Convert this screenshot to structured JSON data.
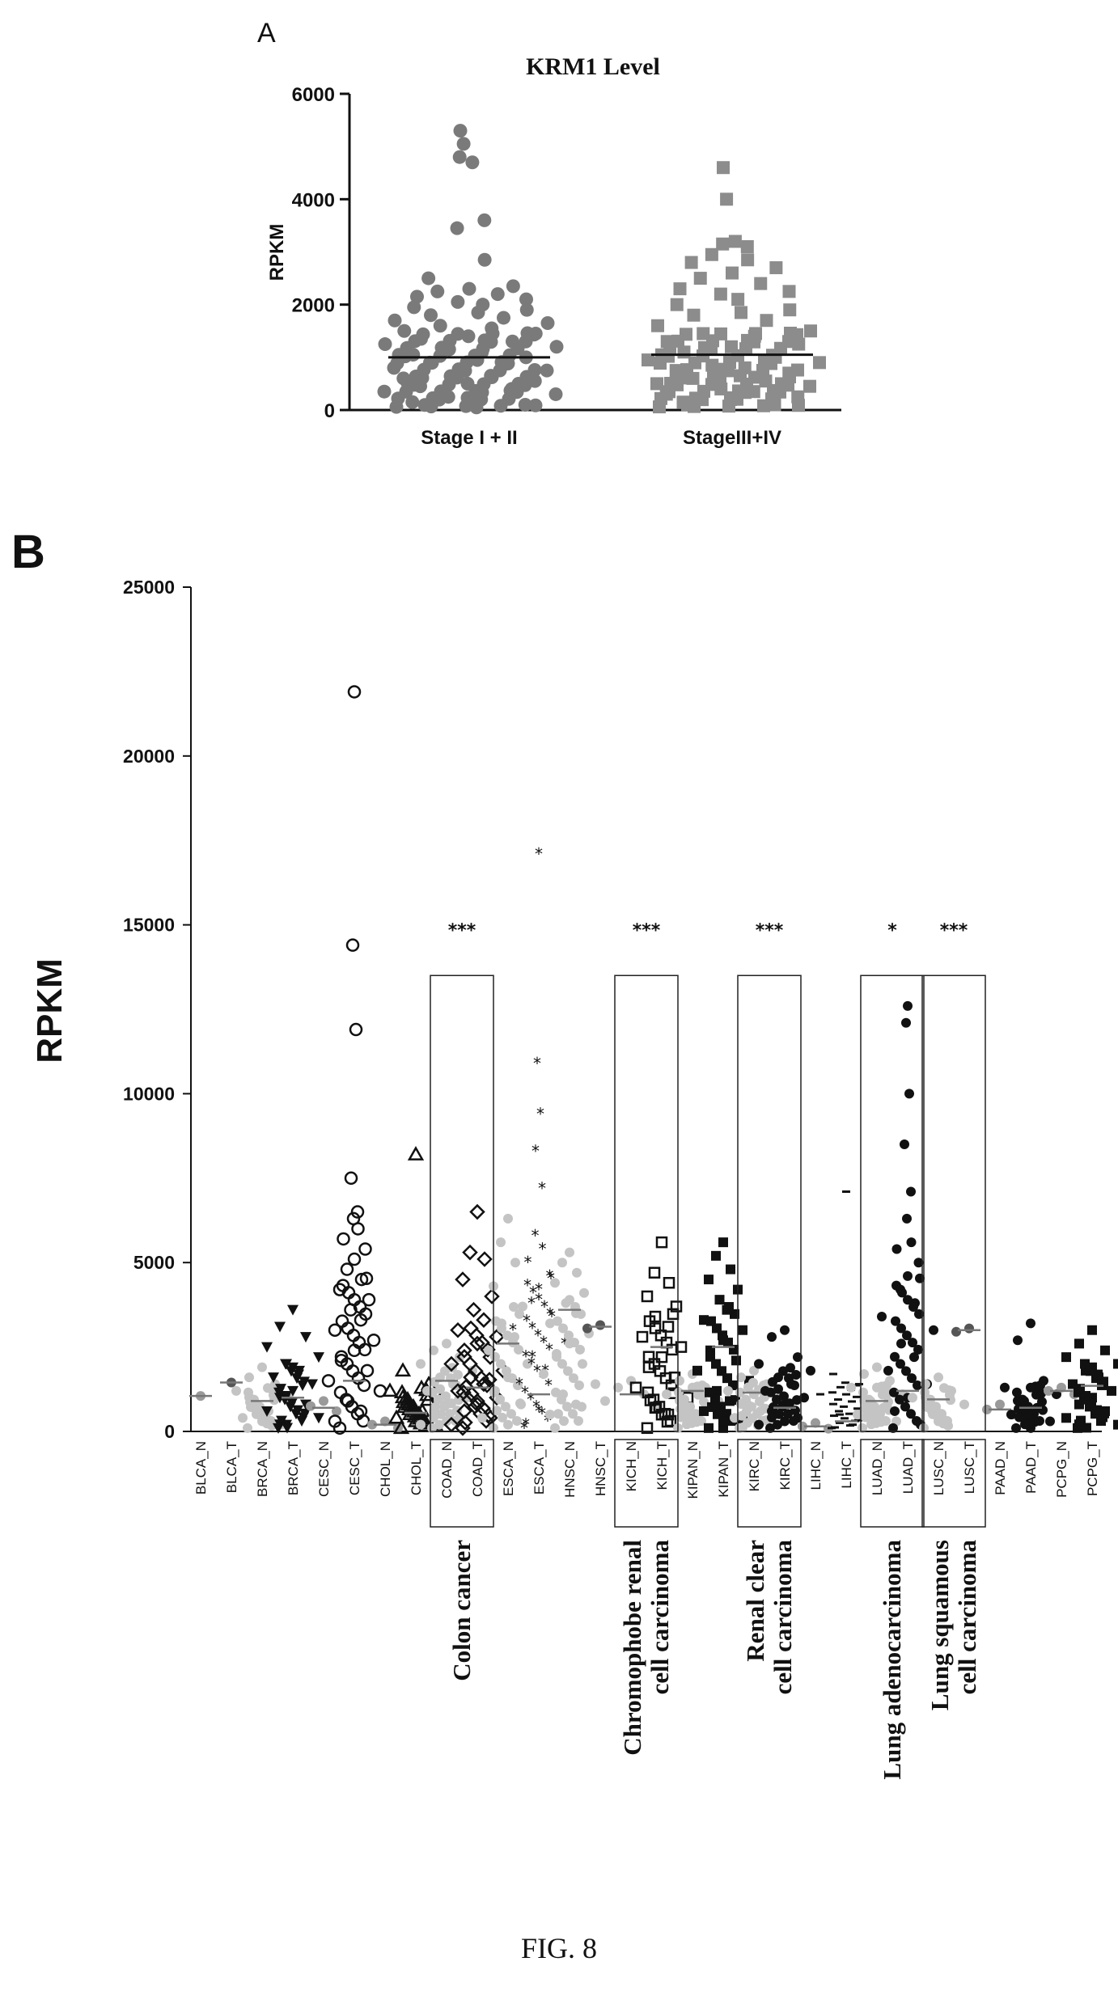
{
  "figure_caption": "FIG. 8",
  "chart_data": [
    {
      "panel": "A",
      "type": "scatter",
      "title": "KRM1 Level",
      "xlabel": "",
      "ylabel": "RPKM",
      "ylim": [
        0,
        6000
      ],
      "yticks": [
        "0",
        "2000",
        "4000",
        "6000"
      ],
      "categories": [
        "Stage I + II",
        "StageIII+IV"
      ],
      "series": [
        {
          "name": "Stage I + II",
          "marker": "circle",
          "color": "#7a7a7a",
          "mean": 1000,
          "values": [
            5300,
            5050,
            4700,
            4800,
            3600,
            3450,
            2850,
            2500,
            2350,
            2300,
            2250,
            2200,
            2150,
            2100,
            2050,
            2000,
            1950,
            1900,
            1850,
            1800,
            1750,
            1700,
            1650,
            1600,
            1550,
            1500,
            1450,
            1400,
            1350,
            1300,
            1250,
            1200,
            1150,
            1100,
            1050,
            1000,
            950,
            900,
            850,
            800,
            750,
            700,
            650,
            600,
            550,
            500,
            450,
            400,
            350,
            300,
            250,
            200,
            150,
            100,
            50
          ]
        },
        {
          "name": "StageIII+IV",
          "marker": "square",
          "color": "#8c8c8c",
          "mean": 1050,
          "values": [
            4600,
            4000,
            3200,
            3150,
            3100,
            2950,
            2850,
            2800,
            2700,
            2600,
            2500,
            2400,
            2300,
            2250,
            2200,
            2100,
            2000,
            1900,
            1850,
            1800,
            1700,
            1600,
            1500,
            1450,
            1400,
            1300,
            1250,
            1200,
            1100,
            1000,
            950,
            900,
            850,
            800,
            750,
            700,
            650,
            600,
            550,
            500,
            450,
            400,
            350,
            300,
            250,
            200,
            150,
            100
          ]
        }
      ]
    },
    {
      "panel": "B",
      "type": "scatter",
      "title": "",
      "xlabel": "",
      "ylabel": "RPKM",
      "ylim": [
        0,
        25000
      ],
      "yticks": [
        "0",
        "5000",
        "10000",
        "15000",
        "20000",
        "25000"
      ],
      "categories": [
        "BLCA_N",
        "BLCA_T",
        "BRCA_N",
        "BRCA_T",
        "CESC_N",
        "CESC_T",
        "CHOL_N",
        "CHOL_T",
        "COAD_N",
        "COAD_T",
        "ESCA_N",
        "ESCA_T",
        "HNSC_N",
        "HNSC_T",
        "KICH_N",
        "KICH_T",
        "KIPAN_N",
        "KIPAN_T",
        "KIRC_N",
        "KIRC_T",
        "LIHC_N",
        "LIHC_T",
        "LUAD_N",
        "LUAD_T",
        "LUSC_N",
        "LUSC_T",
        "PAAD_N",
        "PAAD_T",
        "PCPG_N",
        "PCPG_T"
      ],
      "groups": [
        {
          "name": "BLCA_N",
          "color": "#9a9a9a",
          "marker": "dot",
          "mean": 1050,
          "values": [
            1050
          ]
        },
        {
          "name": "BLCA_T",
          "color": "#555555",
          "marker": "dot",
          "mean": 1450,
          "values": [
            1450
          ]
        },
        {
          "name": "BRCA_N",
          "color": "#c4c4c4",
          "marker": "dot",
          "mean": 900,
          "values": [
            1900,
            1600,
            1400,
            1200,
            1000,
            800,
            600,
            400,
            200
          ]
        },
        {
          "name": "BRCA_T",
          "color": "#111111",
          "marker": "tri-down",
          "mean": 1000,
          "values": [
            3600,
            3100,
            2800,
            2500,
            2200,
            2000,
            1800,
            1600,
            1400,
            1200,
            1000,
            800,
            600,
            400,
            200
          ]
        },
        {
          "name": "CESC_N",
          "color": "#9a9a9a",
          "marker": "dot",
          "mean": 700,
          "values": [
            900,
            750,
            600
          ]
        },
        {
          "name": "CESC_T",
          "color": "#111111",
          "marker": "open-circle",
          "mean": 1500,
          "values": [
            21900,
            14400,
            11900,
            7500,
            6500,
            6300,
            6000,
            5700,
            5400,
            5100,
            4800,
            4500,
            4200,
            3900,
            3600,
            3300,
            3000,
            2700,
            2400,
            2100,
            1800,
            1500,
            1200,
            900,
            600,
            300
          ]
        },
        {
          "name": "CHOL_N",
          "color": "#9a9a9a",
          "marker": "dot",
          "mean": 200,
          "values": [
            300,
            200,
            100
          ]
        },
        {
          "name": "CHOL_T",
          "color": "#111111",
          "marker": "open-triangle",
          "mean": 550,
          "values": [
            8200,
            1800,
            1400,
            1200,
            1000,
            800,
            600,
            400,
            200
          ]
        },
        {
          "name": "COAD_N",
          "color": "#c4c4c4",
          "marker": "dot",
          "mean": 1500,
          "values": [
            2600,
            2400,
            2200,
            2000,
            1800,
            1600,
            1400,
            1200,
            1000,
            800,
            600,
            400,
            200
          ]
        },
        {
          "name": "COAD_T",
          "color": "#111111",
          "marker": "open-diamond",
          "mean": 1300,
          "values": [
            6500,
            5300,
            5100,
            4500,
            4000,
            3600,
            3300,
            3000,
            2800,
            2600,
            2400,
            2200,
            2000,
            1800,
            1600,
            1400,
            1200,
            1000,
            800,
            600,
            400,
            200
          ]
        },
        {
          "name": "ESCA_N",
          "color": "#c4c4c4",
          "marker": "dot",
          "mean": 2600,
          "values": [
            6300,
            5600,
            5000,
            4300,
            3700,
            3200,
            2800,
            2400,
            2000,
            1600,
            1200,
            800,
            400
          ]
        },
        {
          "name": "ESCA_T",
          "color": "#111111",
          "marker": "star",
          "mean": 1100,
          "values": [
            17100,
            10900,
            9400,
            8300,
            7200,
            5800,
            5400,
            5000,
            4600,
            4200,
            3800,
            3400,
            3000,
            2600,
            2200,
            1800,
            1400,
            1000,
            600,
            200
          ]
        },
        {
          "name": "HNSC_N",
          "color": "#c4c4c4",
          "marker": "dot",
          "mean": 3600,
          "values": [
            5300,
            5000,
            4700,
            4400,
            4100,
            3800,
            3500,
            3200,
            2900,
            2600,
            2300,
            2000,
            1700,
            1400,
            1100,
            800,
            500
          ]
        },
        {
          "name": "HNSC_T",
          "color": "#555555",
          "marker": "dot",
          "mean": 3100,
          "values": [
            3150,
            3050
          ]
        },
        {
          "name": "KICH_N",
          "color": "#c4c4c4",
          "marker": "dot",
          "mean": 1100,
          "values": [
            1500,
            1300,
            1100,
            900,
            700
          ]
        },
        {
          "name": "KICH_T",
          "color": "#111111",
          "marker": "open-square",
          "mean": 2500,
          "values": [
            5600,
            4700,
            4400,
            4000,
            3700,
            3400,
            3100,
            2800,
            2500,
            2200,
            1900,
            1600,
            1300,
            1000,
            700,
            500
          ]
        },
        {
          "name": "KIPAN_N",
          "color": "#c4c4c4",
          "marker": "dot",
          "mean": 1200,
          "values": [
            1700,
            1500,
            1300,
            1100,
            900,
            700
          ]
        },
        {
          "name": "KIPAN_T",
          "color": "#111111",
          "marker": "square",
          "mean": 2500,
          "values": [
            5600,
            5200,
            4800,
            4500,
            4200,
            3900,
            3600,
            3300,
            3000,
            2700,
            2400,
            2100,
            1800,
            1500,
            1200,
            900,
            600,
            300,
            100
          ]
        },
        {
          "name": "KIRC_N",
          "color": "#c4c4c4",
          "marker": "dot",
          "mean": 1150,
          "values": [
            1800,
            1600,
            1400,
            1200,
            1000,
            800,
            600,
            400
          ]
        },
        {
          "name": "KIRC_T",
          "color": "#111111",
          "marker": "dot",
          "mean": 700,
          "values": [
            3000,
            2800,
            2200,
            2000,
            1800,
            1600,
            1400,
            1200,
            1000,
            800,
            600,
            400,
            200
          ]
        },
        {
          "name": "LIHC_N",
          "color": "#9a9a9a",
          "marker": "dot",
          "mean": 150,
          "values": [
            250,
            150,
            80
          ]
        },
        {
          "name": "LIHC_T",
          "color": "#111111",
          "marker": "dash",
          "mean": 300,
          "values": [
            7100,
            1700,
            1400,
            1100,
            800,
            500,
            200
          ]
        },
        {
          "name": "LUAD_N",
          "color": "#c4c4c4",
          "marker": "dot",
          "mean": 900,
          "values": [
            1900,
            1700,
            1500,
            1300,
            1100,
            900,
            700,
            500,
            300
          ]
        },
        {
          "name": "LUAD_T",
          "color": "#111111",
          "marker": "dot",
          "mean": 1200,
          "values": [
            12600,
            12100,
            10000,
            8500,
            7100,
            6300,
            5600,
            5400,
            5000,
            4600,
            4200,
            3800,
            3400,
            3000,
            2600,
            2200,
            1800,
            1400,
            1000,
            600,
            200
          ]
        },
        {
          "name": "LUSC_N",
          "color": "#c4c4c4",
          "marker": "dot",
          "mean": 950,
          "values": [
            1600,
            1400,
            1200,
            1000,
            800,
            600
          ]
        },
        {
          "name": "LUSC_T",
          "color": "#555555",
          "marker": "dot",
          "mean": 3000,
          "values": [
            3050,
            2950
          ]
        },
        {
          "name": "PAAD_N",
          "color": "#9a9a9a",
          "marker": "dot",
          "mean": 650,
          "values": [
            800,
            650,
            500
          ]
        },
        {
          "name": "PAAD_T",
          "color": "#111111",
          "marker": "dot",
          "mean": 700,
          "values": [
            3200,
            2700,
            1500,
            1300,
            1100,
            900,
            700,
            500,
            300,
            100
          ]
        },
        {
          "name": "PCPG_N",
          "color": "#9a9a9a",
          "marker": "dot",
          "mean": 1200,
          "values": [
            1300,
            1200,
            1100
          ]
        },
        {
          "name": "PCPG_T",
          "color": "#111111",
          "marker": "square",
          "mean": 1350,
          "values": [
            3000,
            2600,
            2400,
            2200,
            2000,
            1800,
            1600,
            1400,
            1200,
            1000,
            800,
            600,
            400,
            200
          ]
        }
      ],
      "significance": [
        {
          "pair": [
            "COAD_N",
            "COAD_T"
          ],
          "label": "***"
        },
        {
          "pair": [
            "KICH_N",
            "KICH_T"
          ],
          "label": "***"
        },
        {
          "pair": [
            "KIRC_N",
            "KIRC_T"
          ],
          "label": "***"
        },
        {
          "pair": [
            "LUAD_N",
            "LUAD_T"
          ],
          "label": "*"
        },
        {
          "pair": [
            "LUSC_N",
            "LUSC_T"
          ],
          "label": "***"
        }
      ],
      "boxes": [
        {
          "pair": [
            "COAD_N",
            "COAD_T"
          ],
          "label_lines": [
            "Colon cancer"
          ]
        },
        {
          "pair": [
            "KICH_N",
            "KICH_T"
          ],
          "label_lines": [
            "Chromophobe renal",
            "cell carcinoma"
          ]
        },
        {
          "pair": [
            "KIRC_N",
            "KIRC_T"
          ],
          "label_lines": [
            "Renal clear",
            "cell carcinoma"
          ]
        },
        {
          "pair": [
            "LUAD_N",
            "LUAD_T"
          ],
          "label_lines": [
            "Lung adenocarcinoma"
          ]
        },
        {
          "pair": [
            "LUSC_N",
            "LUSC_T"
          ],
          "label_lines": [
            "Lung squamous",
            "cell carcinoma"
          ]
        }
      ]
    }
  ]
}
